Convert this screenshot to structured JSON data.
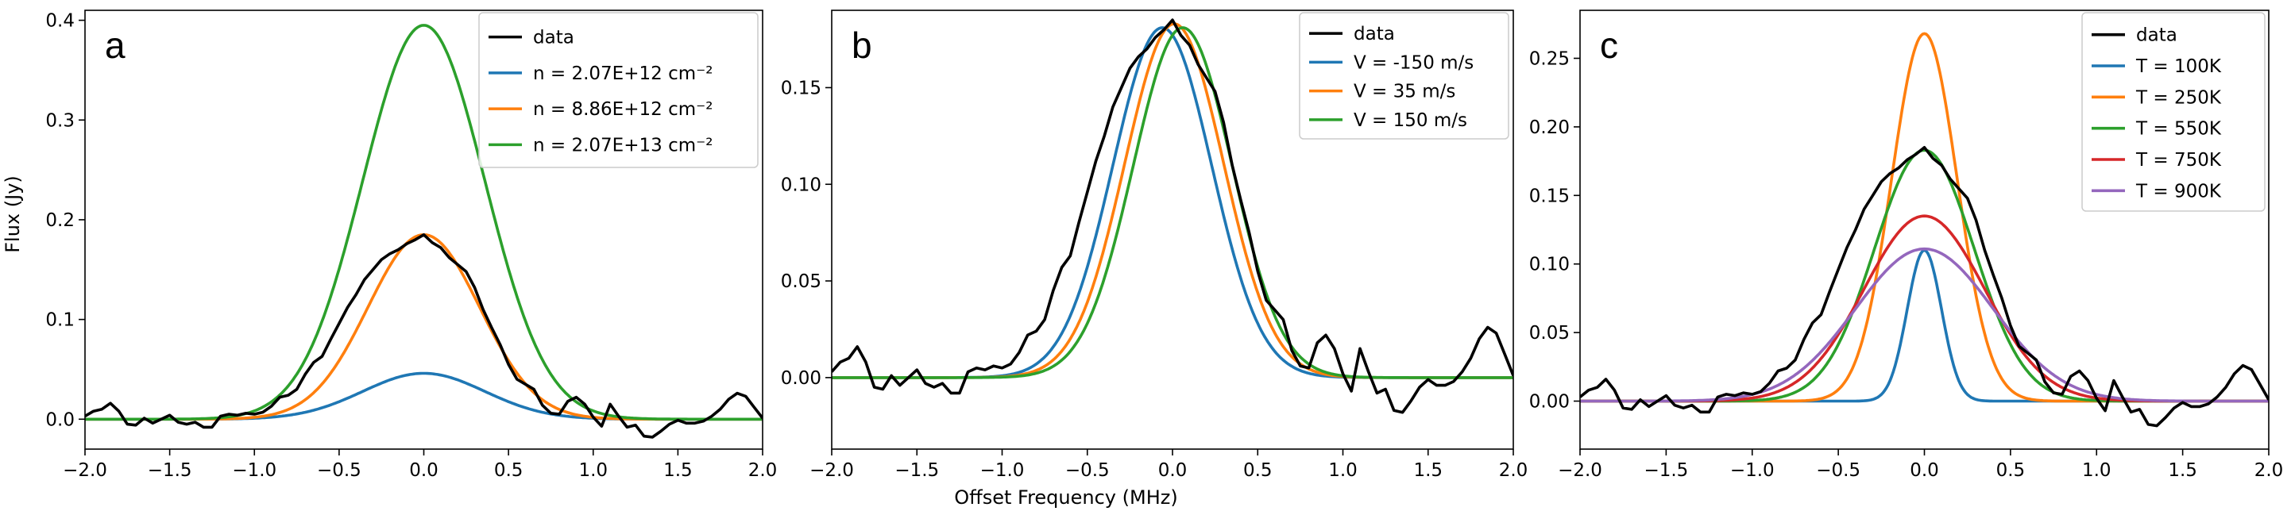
{
  "figure": {
    "ylabel": "Flux (Jy)",
    "xlabel": "Offset Frequency (MHz)"
  },
  "colors": {
    "data": "#000000",
    "blue": "#1f77b4",
    "orange": "#ff7f0e",
    "green": "#2ca02c",
    "red": "#d62728",
    "purple": "#9467bd"
  },
  "chart_data": [
    {
      "type": "line",
      "panel_label": "a",
      "xlim": [
        -2.0,
        2.0
      ],
      "ylim": [
        -0.03,
        0.41
      ],
      "xticks": [
        -2.0,
        -1.5,
        -1.0,
        -0.5,
        0.0,
        0.5,
        1.0,
        1.5,
        2.0
      ],
      "xtick_labels": [
        "−2.0",
        "−1.5",
        "−1.0",
        "−0.5",
        "0.0",
        "0.5",
        "1.0",
        "1.5",
        "2.0"
      ],
      "yticks": [
        0.0,
        0.1,
        0.2,
        0.3,
        0.4
      ],
      "ytick_labels": [
        "0.0",
        "0.1",
        "0.2",
        "0.3",
        "0.4"
      ],
      "legend_position": "top-right",
      "series": [
        {
          "name": "data",
          "color": "#000000",
          "kind": "data"
        },
        {
          "name": "n = 2.07E+12 cm⁻²",
          "color": "#1f77b4",
          "kind": "gauss",
          "amp": 0.046,
          "center": 0.0,
          "sigma": 0.36
        },
        {
          "name": "n = 8.86E+12 cm⁻²",
          "color": "#ff7f0e",
          "kind": "gauss",
          "amp": 0.185,
          "center": 0.0,
          "sigma": 0.33
        },
        {
          "name": "n = 2.07E+13 cm⁻²",
          "color": "#2ca02c",
          "kind": "gauss",
          "amp": 0.395,
          "center": 0.0,
          "sigma": 0.36
        }
      ]
    },
    {
      "type": "line",
      "panel_label": "b",
      "xlim": [
        -2.0,
        2.0
      ],
      "ylim": [
        -0.037,
        0.19
      ],
      "xticks": [
        -2.0,
        -1.5,
        -1.0,
        -0.5,
        0.0,
        0.5,
        1.0,
        1.5,
        2.0
      ],
      "xtick_labels": [
        "−2.0",
        "−1.5",
        "−1.0",
        "−0.5",
        "0.0",
        "0.5",
        "1.0",
        "1.5",
        "2.0"
      ],
      "yticks": [
        0.0,
        0.05,
        0.1,
        0.15
      ],
      "ytick_labels": [
        "0.00",
        "0.05",
        "0.10",
        "0.15"
      ],
      "legend_position": "top-right",
      "series": [
        {
          "name": "data",
          "color": "#000000",
          "kind": "data"
        },
        {
          "name": "V = -150 m/s",
          "color": "#1f77b4",
          "kind": "gauss",
          "amp": 0.181,
          "center": -0.06,
          "sigma": 0.29
        },
        {
          "name": "V = 35 m/s",
          "color": "#ff7f0e",
          "kind": "gauss",
          "amp": 0.183,
          "center": 0.01,
          "sigma": 0.29
        },
        {
          "name": "V  = 150 m/s",
          "color": "#2ca02c",
          "kind": "gauss",
          "amp": 0.181,
          "center": 0.06,
          "sigma": 0.29
        }
      ]
    },
    {
      "type": "line",
      "panel_label": "c",
      "xlim": [
        -2.0,
        2.0
      ],
      "ylim": [
        -0.035,
        0.285
      ],
      "xticks": [
        -2.0,
        -1.5,
        -1.0,
        -0.5,
        0.0,
        0.5,
        1.0,
        1.5,
        2.0
      ],
      "xtick_labels": [
        "−2.0",
        "−1.5",
        "−1.0",
        "−0.5",
        "0.0",
        "0.5",
        "1.0",
        "1.5",
        "2.0"
      ],
      "yticks": [
        0.0,
        0.05,
        0.1,
        0.15,
        0.2,
        0.25
      ],
      "ytick_labels": [
        "0.00",
        "0.05",
        "0.10",
        "0.15",
        "0.20",
        "0.25"
      ],
      "legend_position": "top-right",
      "series": [
        {
          "name": "data",
          "color": "#000000",
          "kind": "data"
        },
        {
          "name": "T = 100K",
          "color": "#1f77b4",
          "kind": "gauss",
          "amp": 0.11,
          "center": 0.0,
          "sigma": 0.1
        },
        {
          "name": "T = 250K",
          "color": "#ff7f0e",
          "kind": "gauss",
          "amp": 0.268,
          "center": 0.0,
          "sigma": 0.19
        },
        {
          "name": "T = 550K",
          "color": "#2ca02c",
          "kind": "gauss",
          "amp": 0.183,
          "center": 0.0,
          "sigma": 0.29
        },
        {
          "name": "T = 750K",
          "color": "#d62728",
          "kind": "gauss",
          "amp": 0.135,
          "center": 0.0,
          "sigma": 0.35
        },
        {
          "name": "T = 900K",
          "color": "#9467bd",
          "kind": "gauss",
          "amp": 0.111,
          "center": 0.0,
          "sigma": 0.4
        }
      ]
    }
  ],
  "observed_data": {
    "x": [
      -2.0,
      -1.95,
      -1.9,
      -1.85,
      -1.8,
      -1.75,
      -1.7,
      -1.65,
      -1.6,
      -1.55,
      -1.5,
      -1.45,
      -1.4,
      -1.35,
      -1.3,
      -1.25,
      -1.2,
      -1.15,
      -1.1,
      -1.05,
      -1.0,
      -0.95,
      -0.9,
      -0.85,
      -0.8,
      -0.75,
      -0.7,
      -0.65,
      -0.6,
      -0.55,
      -0.5,
      -0.45,
      -0.4,
      -0.35,
      -0.3,
      -0.25,
      -0.2,
      -0.15,
      -0.1,
      -0.05,
      0.0,
      0.05,
      0.1,
      0.15,
      0.2,
      0.25,
      0.3,
      0.35,
      0.4,
      0.45,
      0.5,
      0.55,
      0.6,
      0.65,
      0.7,
      0.75,
      0.8,
      0.85,
      0.9,
      0.95,
      1.0,
      1.05,
      1.1,
      1.15,
      1.2,
      1.25,
      1.3,
      1.35,
      1.4,
      1.45,
      1.5,
      1.55,
      1.6,
      1.65,
      1.7,
      1.75,
      1.8,
      1.85,
      1.9,
      1.95,
      2.0
    ],
    "y": [
      0.003,
      0.008,
      0.01,
      0.016,
      0.008,
      -0.005,
      -0.006,
      0.001,
      -0.004,
      0.0,
      0.004,
      -0.003,
      -0.005,
      -0.003,
      -0.008,
      -0.008,
      0.003,
      0.005,
      0.004,
      0.006,
      0.005,
      0.007,
      0.013,
      0.022,
      0.024,
      0.03,
      0.045,
      0.057,
      0.063,
      0.08,
      0.096,
      0.112,
      0.125,
      0.14,
      0.15,
      0.16,
      0.166,
      0.17,
      0.176,
      0.18,
      0.185,
      0.177,
      0.172,
      0.162,
      0.155,
      0.148,
      0.132,
      0.11,
      0.092,
      0.075,
      0.055,
      0.04,
      0.035,
      0.03,
      0.014,
      0.006,
      0.005,
      0.018,
      0.022,
      0.015,
      0.002,
      -0.007,
      0.015,
      0.003,
      -0.008,
      -0.006,
      -0.017,
      -0.018,
      -0.012,
      -0.005,
      -0.001,
      -0.004,
      -0.004,
      -0.002,
      0.003,
      0.01,
      0.02,
      0.026,
      0.023,
      0.012,
      0.001
    ]
  }
}
